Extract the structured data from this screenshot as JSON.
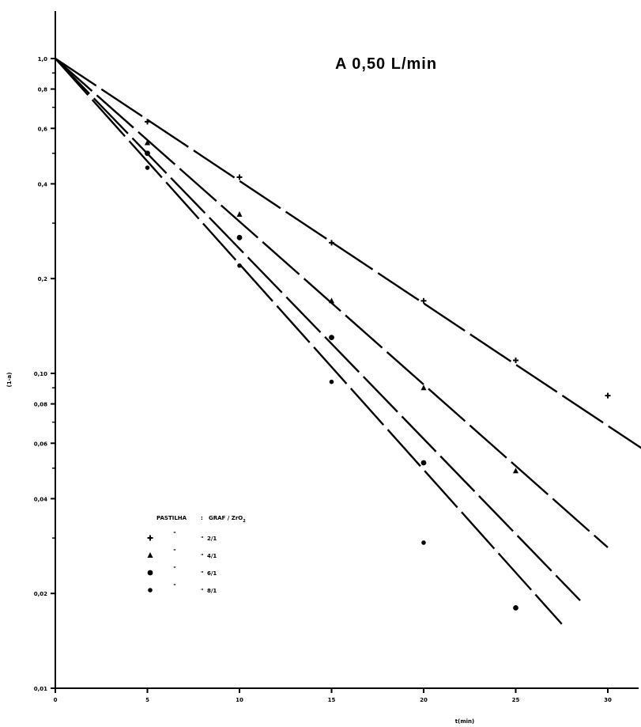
{
  "chart_data": {
    "type": "line",
    "title": "",
    "annotation": "A  0,50 L/min",
    "xlabel": "t(min)",
    "ylabel": "(1-a)",
    "x_scale": "linear",
    "y_scale": "log",
    "xlim": [
      0,
      32
    ],
    "ylim": [
      0.01,
      1.0
    ],
    "grid": false,
    "x_ticks": [
      {
        "value": 0,
        "label": "0"
      },
      {
        "value": 5,
        "label": "5"
      },
      {
        "value": 10,
        "label": "10"
      },
      {
        "value": 15,
        "label": "15"
      },
      {
        "value": 20,
        "label": "20"
      },
      {
        "value": 25,
        "label": "25"
      },
      {
        "value": 30,
        "label": "30"
      }
    ],
    "y_ticks": [
      {
        "value": 1.0,
        "label": "1,0"
      },
      {
        "value": 0.8,
        "label": "0,8"
      },
      {
        "value": 0.6,
        "label": "0,6"
      },
      {
        "value": 0.4,
        "label": "0,4"
      },
      {
        "value": 0.2,
        "label": "0,2"
      },
      {
        "value": 0.1,
        "label": "0,10"
      },
      {
        "value": 0.08,
        "label": "0,08"
      },
      {
        "value": 0.06,
        "label": "0,06"
      },
      {
        "value": 0.04,
        "label": "0,04"
      },
      {
        "value": 0.02,
        "label": "0,02"
      },
      {
        "value": 0.01,
        "label": "0,01"
      }
    ],
    "legend": {
      "header_left": "PASTILHA",
      "header_right": "GRAF / ZrO",
      "header_subscript": "2",
      "placement": "lower-left",
      "entries": [
        "2/1",
        "4/1",
        "6/1",
        "8/1"
      ]
    },
    "series": [
      {
        "name": "2/1",
        "marker": "+",
        "points": [
          [
            5,
            0.63
          ],
          [
            10,
            0.42
          ],
          [
            15,
            0.26
          ],
          [
            20,
            0.17
          ],
          [
            25,
            0.11
          ],
          [
            30,
            0.085
          ]
        ],
        "fit": [
          [
            0,
            1.0
          ],
          [
            32,
            0.057
          ]
        ]
      },
      {
        "name": "4/1",
        "marker": "triangle",
        "points": [
          [
            5,
            0.54
          ],
          [
            10,
            0.32
          ],
          [
            15,
            0.17
          ],
          [
            20,
            0.09
          ],
          [
            25,
            0.049
          ]
        ],
        "fit": [
          [
            0,
            1.0
          ],
          [
            30,
            0.028
          ]
        ]
      },
      {
        "name": "6/1",
        "marker": "circle",
        "points": [
          [
            5,
            0.5
          ],
          [
            10,
            0.27
          ],
          [
            15,
            0.13
          ],
          [
            20,
            0.052
          ],
          [
            25,
            0.018
          ]
        ],
        "fit": [
          [
            0,
            1.0
          ],
          [
            28.5,
            0.019
          ]
        ]
      },
      {
        "name": "8/1",
        "marker": "dot",
        "points": [
          [
            5,
            0.45
          ],
          [
            10,
            0.22
          ],
          [
            15,
            0.094
          ],
          [
            20,
            0.029
          ],
          [
            25,
            0.018
          ]
        ],
        "fit": [
          [
            0,
            1.0
          ],
          [
            27.5,
            0.016
          ]
        ]
      }
    ]
  }
}
